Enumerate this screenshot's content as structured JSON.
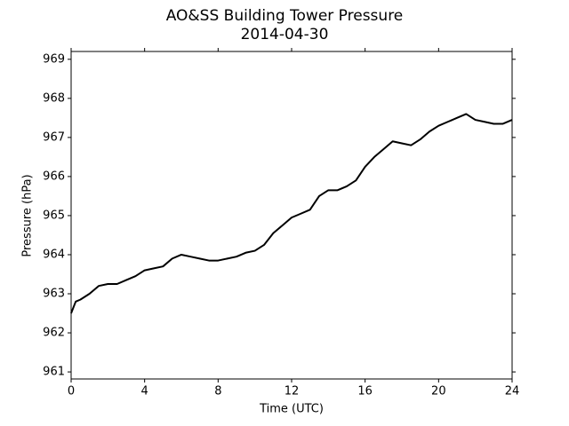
{
  "chart_data": {
    "type": "line",
    "title": "AO&SS Building Tower Pressure",
    "subtitle": "2014-04-30",
    "x_label": "Time (UTC)",
    "y_label": "Pressure (hPa)",
    "x": [
      0,
      0.25,
      0.5,
      1,
      1.5,
      2,
      2.5,
      3,
      3.5,
      4,
      4.5,
      5,
      5.5,
      6,
      6.5,
      7,
      7.5,
      8,
      8.5,
      9,
      9.5,
      10,
      10.5,
      11,
      11.5,
      12,
      12.5,
      13,
      13.5,
      14,
      14.5,
      15,
      15.5,
      16,
      16.5,
      17,
      17.5,
      18,
      18.5,
      19,
      19.5,
      20,
      20.5,
      21,
      21.5,
      22,
      22.5,
      23,
      23.5,
      24
    ],
    "series": [
      {
        "name": "Pressure",
        "color": "#000000",
        "values": [
          962.5,
          962.8,
          962.85,
          963.0,
          963.2,
          963.25,
          963.25,
          963.35,
          963.45,
          963.6,
          963.65,
          963.7,
          963.9,
          964.0,
          963.95,
          963.9,
          963.85,
          963.85,
          963.9,
          963.95,
          964.05,
          964.1,
          964.25,
          964.55,
          964.75,
          964.95,
          965.05,
          965.15,
          965.5,
          965.65,
          965.65,
          965.75,
          965.9,
          966.25,
          966.5,
          966.7,
          966.9,
          966.85,
          966.8,
          966.95,
          967.15,
          967.3,
          967.4,
          967.5,
          967.6,
          967.45,
          967.4,
          967.35,
          967.35,
          967.45
        ]
      }
    ],
    "xlim": [
      0,
      24
    ],
    "xticks": [
      0,
      4,
      8,
      12,
      16,
      20,
      24
    ],
    "ylim": [
      960.82,
      969.2
    ],
    "yticks": [
      961,
      962,
      963,
      964,
      965,
      966,
      967,
      968,
      969
    ]
  }
}
